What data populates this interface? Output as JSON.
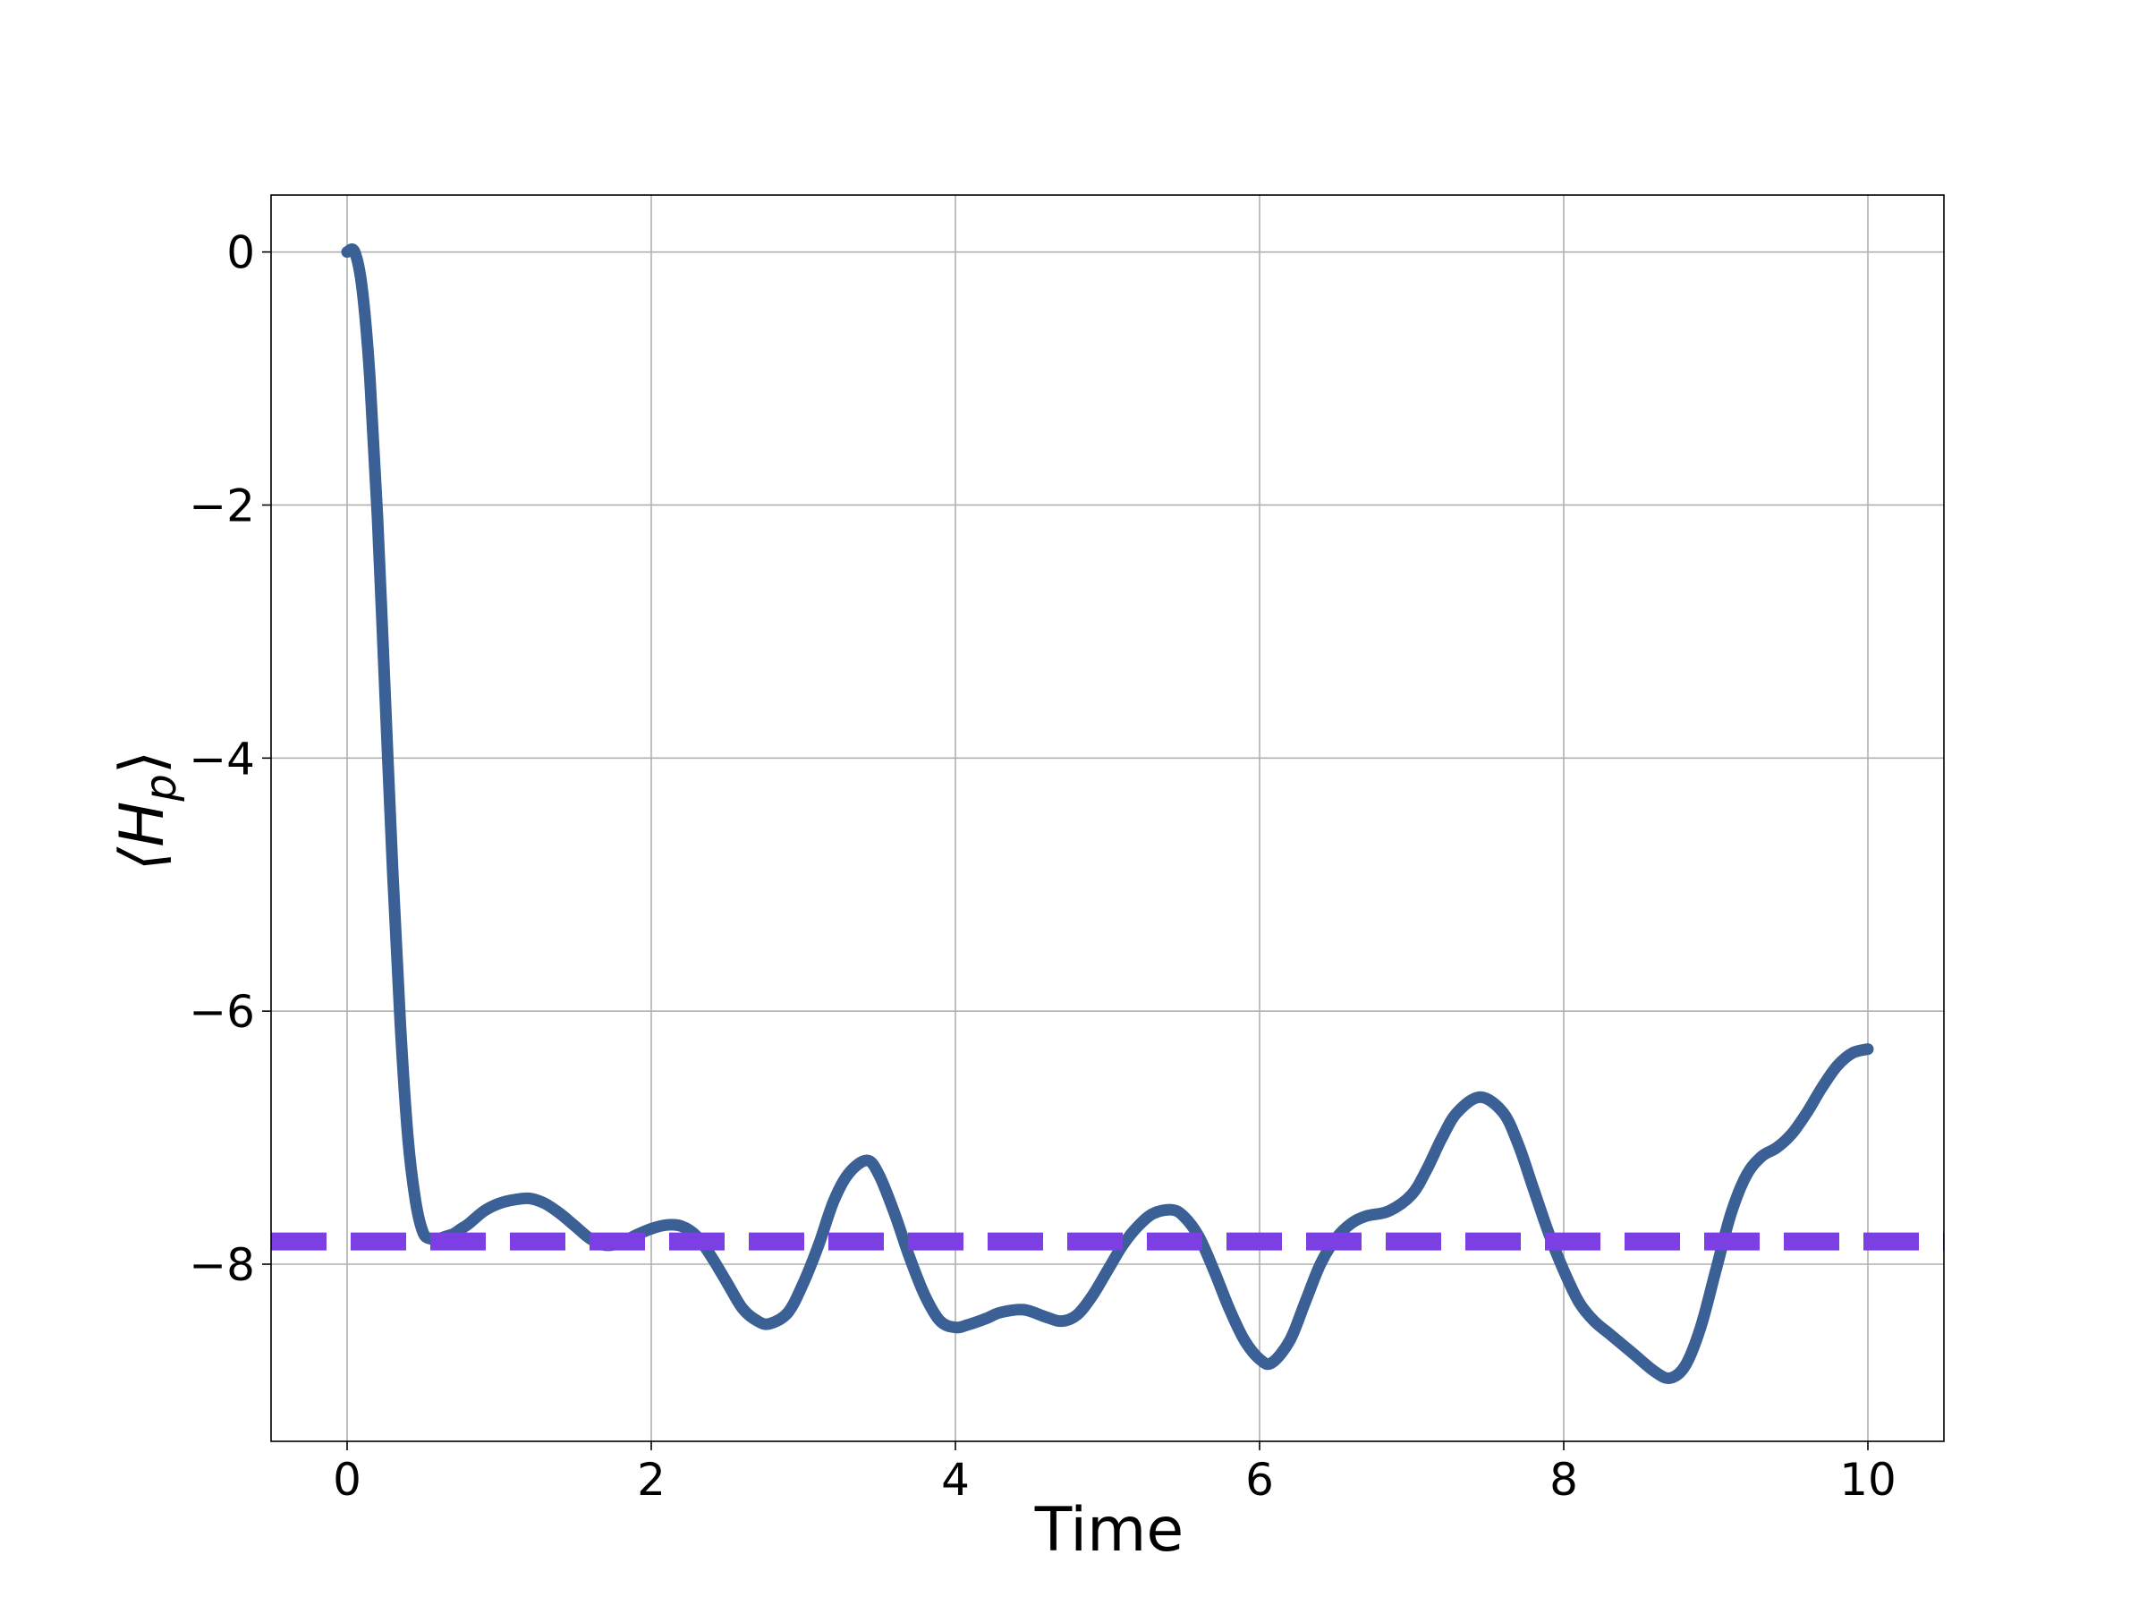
{
  "chart_data": {
    "type": "line",
    "title": "",
    "xlabel": "Time",
    "ylabel_main": "⟨H",
    "ylabel_sub": "p",
    "ylabel_close": "⟩",
    "xlim": [
      -0.5,
      10.5
    ],
    "ylim": [
      -9.4,
      0.45
    ],
    "xticks": [
      0,
      2,
      4,
      6,
      8,
      10
    ],
    "xtick_labels": [
      "0",
      "2",
      "4",
      "6",
      "8",
      "10"
    ],
    "yticks": [
      0,
      -2,
      -4,
      -6,
      -8
    ],
    "ytick_labels": [
      "0",
      "−2",
      "−4",
      "−6",
      "−8"
    ],
    "grid": true,
    "series": [
      {
        "color": "#3a6095",
        "style": "solid",
        "x": [
          0.0,
          0.05,
          0.1,
          0.15,
          0.2,
          0.25,
          0.3,
          0.35,
          0.4,
          0.45,
          0.5,
          0.55,
          0.6,
          0.65,
          0.7,
          0.75,
          0.8,
          0.9,
          1.0,
          1.1,
          1.2,
          1.3,
          1.4,
          1.5,
          1.6,
          1.7,
          1.8,
          1.9,
          2.0,
          2.1,
          2.2,
          2.3,
          2.4,
          2.5,
          2.6,
          2.7,
          2.78,
          2.9,
          3.0,
          3.1,
          3.2,
          3.3,
          3.42,
          3.5,
          3.6,
          3.7,
          3.8,
          3.9,
          4.0,
          4.08,
          4.2,
          4.3,
          4.45,
          4.6,
          4.7,
          4.8,
          4.9,
          5.0,
          5.1,
          5.2,
          5.3,
          5.42,
          5.5,
          5.6,
          5.7,
          5.8,
          5.9,
          6.0,
          6.08,
          6.2,
          6.3,
          6.4,
          6.5,
          6.6,
          6.7,
          6.85,
          7.0,
          7.1,
          7.2,
          7.3,
          7.45,
          7.6,
          7.7,
          7.8,
          7.9,
          8.0,
          8.1,
          8.2,
          8.3,
          8.45,
          8.6,
          8.7,
          8.8,
          8.9,
          9.0,
          9.1,
          9.2,
          9.3,
          9.4,
          9.5,
          9.6,
          9.7,
          9.8,
          9.9,
          10.0
        ],
        "y": [
          0.0,
          0.0,
          -0.3,
          -1.0,
          -2.1,
          -3.5,
          -4.9,
          -6.1,
          -7.0,
          -7.5,
          -7.75,
          -7.8,
          -7.8,
          -7.78,
          -7.76,
          -7.72,
          -7.68,
          -7.58,
          -7.52,
          -7.49,
          -7.48,
          -7.52,
          -7.6,
          -7.7,
          -7.8,
          -7.85,
          -7.83,
          -7.77,
          -7.72,
          -7.69,
          -7.7,
          -7.78,
          -7.95,
          -8.15,
          -8.35,
          -8.45,
          -8.47,
          -8.38,
          -8.15,
          -7.85,
          -7.5,
          -7.28,
          -7.18,
          -7.3,
          -7.6,
          -7.95,
          -8.25,
          -8.45,
          -8.5,
          -8.48,
          -8.43,
          -8.38,
          -8.36,
          -8.42,
          -8.45,
          -8.4,
          -8.25,
          -8.05,
          -7.85,
          -7.7,
          -7.6,
          -7.57,
          -7.62,
          -7.78,
          -8.05,
          -8.35,
          -8.6,
          -8.75,
          -8.78,
          -8.6,
          -8.3,
          -8.0,
          -7.8,
          -7.68,
          -7.62,
          -7.58,
          -7.45,
          -7.25,
          -7.0,
          -6.8,
          -6.68,
          -6.8,
          -7.05,
          -7.4,
          -7.75,
          -8.05,
          -8.3,
          -8.45,
          -8.55,
          -8.7,
          -8.85,
          -8.9,
          -8.8,
          -8.5,
          -8.05,
          -7.6,
          -7.3,
          -7.15,
          -7.08,
          -6.97,
          -6.8,
          -6.6,
          -6.43,
          -6.33,
          -6.3
        ]
      },
      {
        "color": "#7b3fe4",
        "style": "dashed",
        "x": [
          -0.5,
          10.5
        ],
        "y": [
          -7.82,
          -7.82
        ]
      }
    ]
  }
}
